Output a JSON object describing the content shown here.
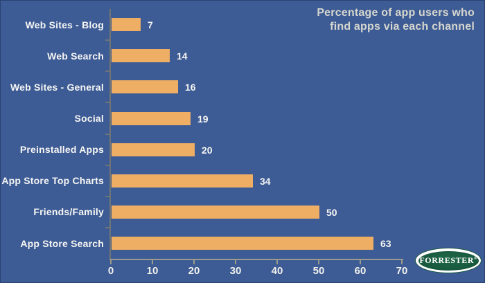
{
  "title": {
    "line1": "Percentage of app users who",
    "line2": "find apps via each channel"
  },
  "chart_data": {
    "type": "bar",
    "orientation": "horizontal",
    "categories": [
      "Web Sites - Blog",
      "Web Search",
      "Web Sites - General",
      "Social",
      "Preinstalled Apps",
      "App Store Top Charts",
      "Friends/Family",
      "App Store Search"
    ],
    "values": [
      7,
      14,
      16,
      19,
      20,
      34,
      50,
      63
    ],
    "value_labels": [
      "7",
      "14",
      "16",
      "19",
      "20",
      "34",
      "50",
      "63"
    ],
    "x_ticks": [
      "0",
      "10",
      "20",
      "30",
      "40",
      "50",
      "60",
      "70"
    ],
    "xlim": [
      0,
      70
    ],
    "grid": false,
    "legend": "none",
    "title": "Percentage of app users who find apps via each channel",
    "colors": {
      "background": "#3D5B94",
      "bar": "#EEAE63",
      "y_axis": "#6F7577",
      "x_axis": "#9B9B8B",
      "title_text": "#D6D7CF",
      "label_text": "#F6F6F4"
    }
  },
  "branding": {
    "logo_text": "FORRESTER",
    "logo_reg": "®",
    "logo_green": "#175A3E"
  }
}
